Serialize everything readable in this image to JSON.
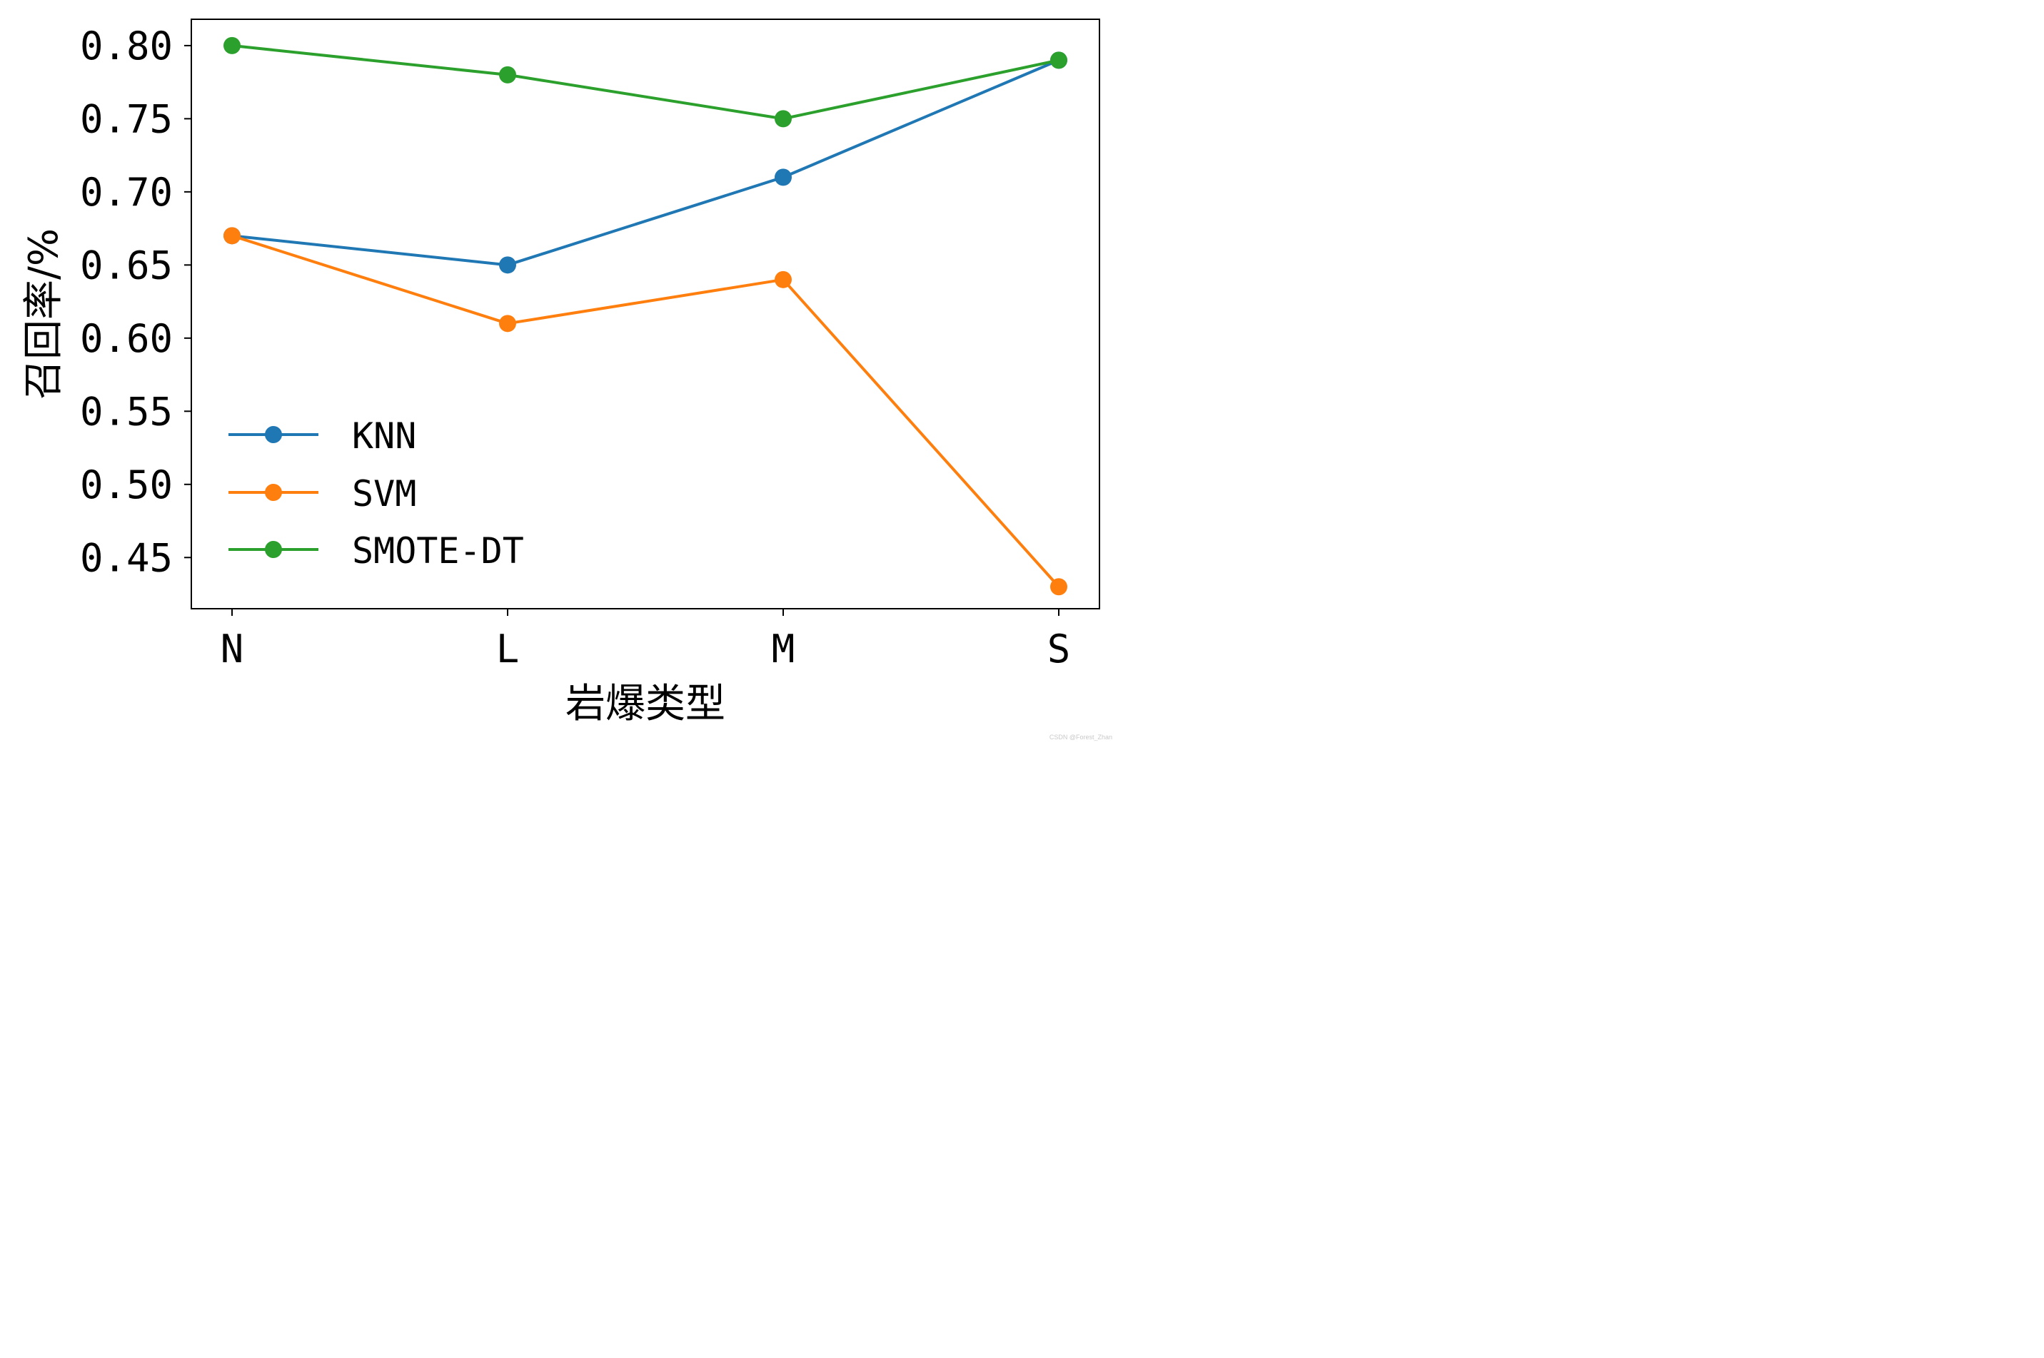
{
  "chart_data": {
    "type": "line",
    "title": "",
    "xlabel": "岩爆类型",
    "ylabel": "召回率/%",
    "categories": [
      "N",
      "L",
      "M",
      "S"
    ],
    "ylim": [
      0.415,
      0.818
    ],
    "yticks": [
      "0.45",
      "0.50",
      "0.55",
      "0.60",
      "0.65",
      "0.70",
      "0.75",
      "0.80"
    ],
    "grid": false,
    "legend_position": "lower-left",
    "series": [
      {
        "name": "KNN",
        "color": "#1f77b4",
        "marker": "circle",
        "values": [
          0.67,
          0.65,
          0.71,
          0.79
        ]
      },
      {
        "name": "SVM",
        "color": "#ff7f0e",
        "marker": "circle",
        "values": [
          0.67,
          0.61,
          0.64,
          0.43
        ]
      },
      {
        "name": "SMOTE-DT",
        "color": "#2ca02c",
        "marker": "circle",
        "values": [
          0.8,
          0.78,
          0.75,
          0.79
        ]
      }
    ]
  },
  "watermark": "CSDN @Forest_Zhan"
}
